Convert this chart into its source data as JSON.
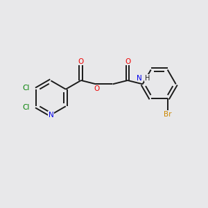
{
  "background_color": "#e8e8ea",
  "bond_color": "#1a1a1a",
  "atom_colors": {
    "Cl": "#008000",
    "N_pyridine": "#0000ee",
    "O": "#ee0000",
    "N_amide": "#0000ee",
    "Br": "#cc8800",
    "C": "#1a1a1a"
  },
  "figsize": [
    3.0,
    3.0
  ],
  "dpi": 100,
  "xlim": [
    0,
    10
  ],
  "ylim": [
    0,
    10
  ]
}
